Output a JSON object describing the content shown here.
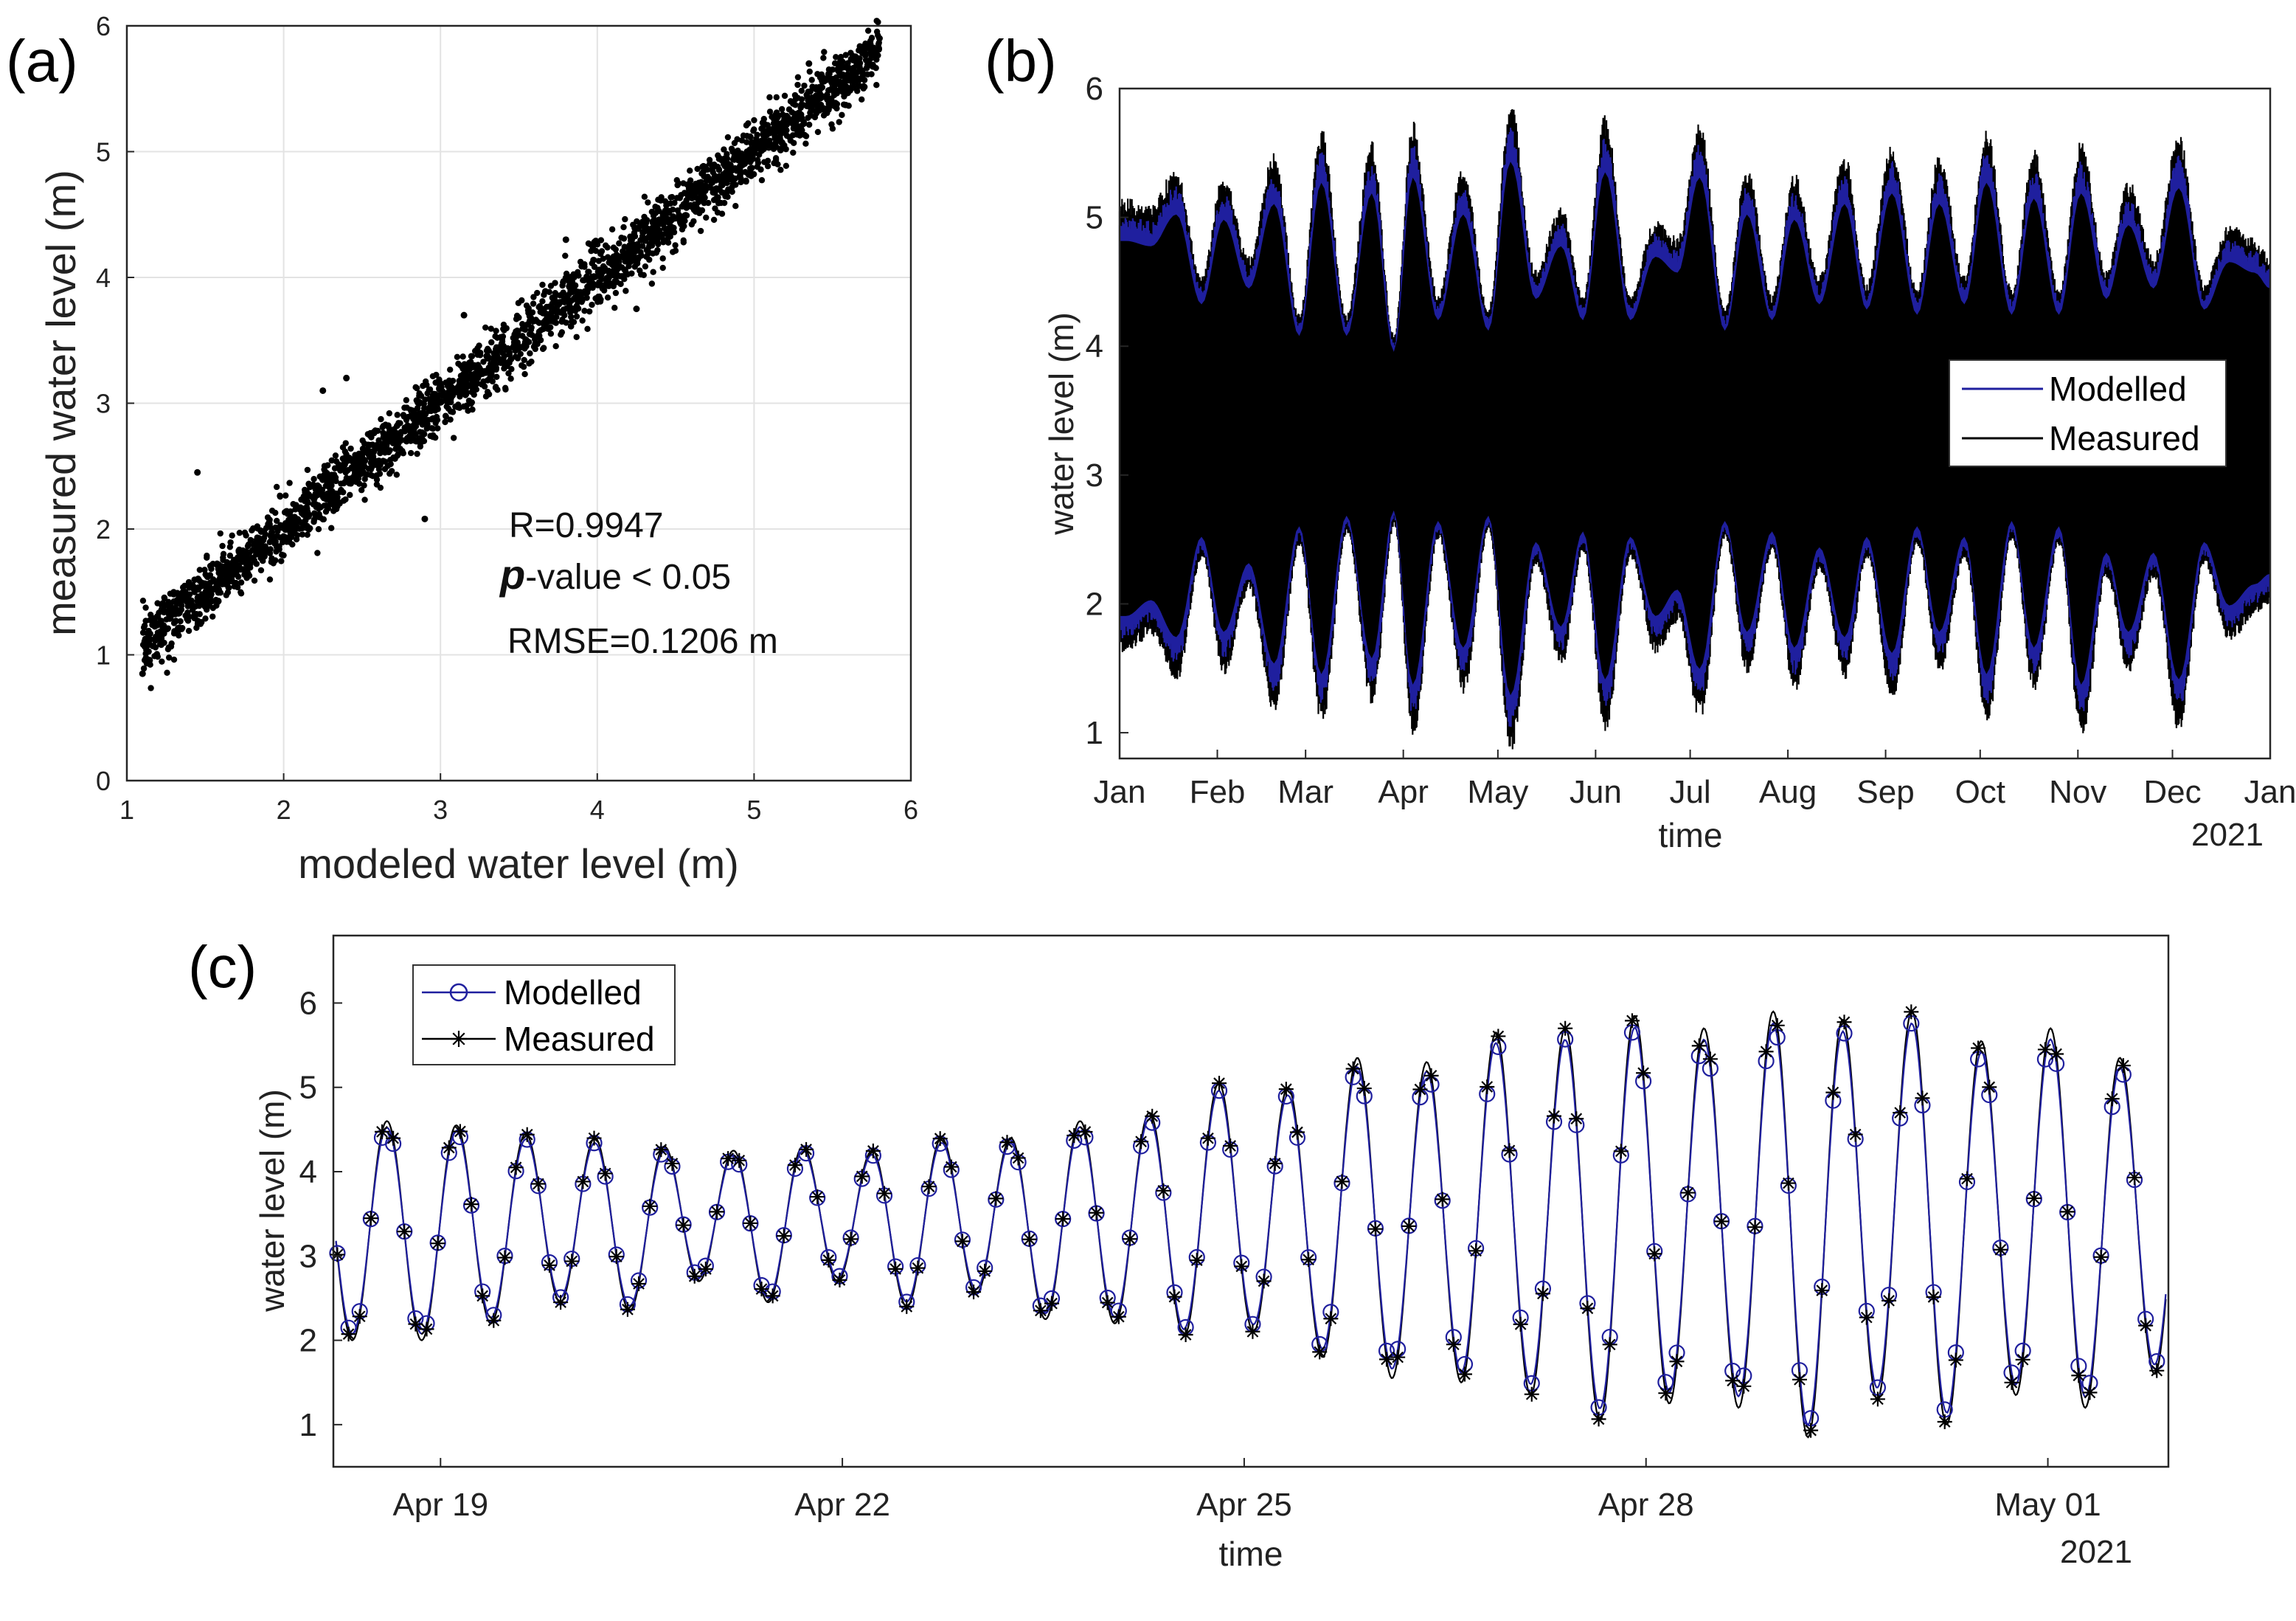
{
  "colors": {
    "modelled": "#1f1f9e",
    "measured": "#000000",
    "grid": "#e3e3e3",
    "axis": "#262626"
  },
  "chart_data": [
    {
      "panel": "(a)",
      "type": "scatter",
      "title": "",
      "xlabel": "modeled water level (m)",
      "ylabel": "measured water level (m)",
      "xlim": [
        1,
        6
      ],
      "ylim": [
        0,
        6
      ],
      "xticks": [
        1,
        2,
        3,
        4,
        5,
        6
      ],
      "yticks": [
        0,
        1,
        2,
        3,
        4,
        5,
        6
      ],
      "grid": true,
      "fit": {
        "slope": 1.0,
        "intercept": 0.0,
        "scatter_sd_m": 0.12,
        "x_range": [
          1.1,
          5.8
        ]
      },
      "points": [
        [
          1.1,
          0.85
        ],
        [
          1.45,
          2.45
        ],
        [
          2.25,
          3.1
        ],
        [
          2.4,
          3.2
        ],
        [
          2.9,
          2.08
        ],
        [
          3.15,
          3.7
        ],
        [
          3.8,
          4.3
        ],
        [
          4.25,
          3.75
        ],
        [
          5.35,
          5.7
        ],
        [
          5.8,
          5.9
        ]
      ],
      "annotations": [
        "R=0.9947",
        "-value < 0.05",
        "RMSE=0.1206 m"
      ],
      "annotation_italic_prefix": "p"
    },
    {
      "panel": "(b)",
      "type": "line",
      "xlabel": "time",
      "ylabel": "water level (m)",
      "ylim": [
        0.8,
        6
      ],
      "yticks": [
        1,
        2,
        3,
        4,
        5,
        6
      ],
      "x_units": "day of year",
      "xlim": [
        0,
        365
      ],
      "xticks": [
        0,
        31,
        59,
        90,
        120,
        151,
        181,
        212,
        243,
        273,
        304,
        334,
        365
      ],
      "xticklabels": [
        "Jan",
        "Feb",
        "Mar",
        "Apr",
        "May",
        "Jun",
        "Jul",
        "Aug",
        "Sep",
        "Oct",
        "Nov",
        "Dec",
        "Jan"
      ],
      "year_label": "2021",
      "mean_level": 3.3,
      "envelope_peaks": [
        {
          "day": 2,
          "high": 5.15,
          "low": 1.6
        },
        {
          "day": 10,
          "high": 5.1,
          "low": 1.75
        },
        {
          "day": 18,
          "high": 5.4,
          "low": 1.4
        },
        {
          "day": 26,
          "high": 4.55,
          "low": 2.35
        },
        {
          "day": 33,
          "high": 5.35,
          "low": 1.45
        },
        {
          "day": 41,
          "high": 4.7,
          "low": 2.1
        },
        {
          "day": 49,
          "high": 5.5,
          "low": 1.15
        },
        {
          "day": 57,
          "high": 4.25,
          "low": 2.45
        },
        {
          "day": 64,
          "high": 5.7,
          "low": 1.05
        },
        {
          "day": 72,
          "high": 4.25,
          "low": 2.55
        },
        {
          "day": 80,
          "high": 5.6,
          "low": 1.2
        },
        {
          "day": 87,
          "high": 4.1,
          "low": 2.6
        },
        {
          "day": 93,
          "high": 5.75,
          "low": 0.95
        },
        {
          "day": 101,
          "high": 4.4,
          "low": 2.5
        },
        {
          "day": 109,
          "high": 5.4,
          "low": 1.3
        },
        {
          "day": 117,
          "high": 4.3,
          "low": 2.55
        },
        {
          "day": 124,
          "high": 5.9,
          "low": 0.85
        },
        {
          "day": 132,
          "high": 4.6,
          "low": 2.3
        },
        {
          "day": 140,
          "high": 5.1,
          "low": 1.5
        },
        {
          "day": 147,
          "high": 4.4,
          "low": 2.4
        },
        {
          "day": 154,
          "high": 5.8,
          "low": 1.0
        },
        {
          "day": 162,
          "high": 4.4,
          "low": 2.35
        },
        {
          "day": 170,
          "high": 5.0,
          "low": 1.6
        },
        {
          "day": 177,
          "high": 4.85,
          "low": 1.85
        },
        {
          "day": 184,
          "high": 5.75,
          "low": 1.1
        },
        {
          "day": 192,
          "high": 4.3,
          "low": 2.5
        },
        {
          "day": 199,
          "high": 5.4,
          "low": 1.45
        },
        {
          "day": 207,
          "high": 4.4,
          "low": 2.4
        },
        {
          "day": 214,
          "high": 5.35,
          "low": 1.3
        },
        {
          "day": 222,
          "high": 4.55,
          "low": 2.25
        },
        {
          "day": 230,
          "high": 5.5,
          "low": 1.4
        },
        {
          "day": 237,
          "high": 4.5,
          "low": 2.35
        },
        {
          "day": 245,
          "high": 5.6,
          "low": 1.25
        },
        {
          "day": 253,
          "high": 4.45,
          "low": 2.45
        },
        {
          "day": 260,
          "high": 5.5,
          "low": 1.45
        },
        {
          "day": 268,
          "high": 4.55,
          "low": 2.35
        },
        {
          "day": 275,
          "high": 5.7,
          "low": 1.05
        },
        {
          "day": 283,
          "high": 4.45,
          "low": 2.5
        },
        {
          "day": 290,
          "high": 5.55,
          "low": 1.3
        },
        {
          "day": 298,
          "high": 4.45,
          "low": 2.45
        },
        {
          "day": 305,
          "high": 5.6,
          "low": 0.95
        },
        {
          "day": 313,
          "high": 4.6,
          "low": 2.2
        },
        {
          "day": 320,
          "high": 5.3,
          "low": 1.45
        },
        {
          "day": 328,
          "high": 4.7,
          "low": 2.2
        },
        {
          "day": 336,
          "high": 5.65,
          "low": 1.0
        },
        {
          "day": 344,
          "high": 4.5,
          "low": 2.3
        },
        {
          "day": 352,
          "high": 4.95,
          "low": 1.7
        },
        {
          "day": 360,
          "high": 4.85,
          "low": 1.9
        },
        {
          "day": 365,
          "high": 4.7,
          "low": 2.0
        }
      ],
      "modelled_damping": 0.93,
      "legend": {
        "position": "right",
        "entries": [
          "Modelled",
          "Measured"
        ]
      },
      "series": [
        {
          "name": "Modelled",
          "color": "#1f1f9e"
        },
        {
          "name": "Measured",
          "color": "#000000"
        }
      ]
    },
    {
      "panel": "(c)",
      "type": "line",
      "xlabel": "time",
      "ylabel": "water level (m)",
      "ylim": [
        0.5,
        6.8
      ],
      "yticks": [
        1,
        2,
        3,
        4,
        5,
        6
      ],
      "x_units": "days since Apr 18 00:00",
      "xlim": [
        0.2,
        13.9
      ],
      "xticks": [
        1,
        4,
        7,
        10,
        13
      ],
      "xticklabels": [
        "Apr 19",
        "Apr 22",
        "Apr 25",
        "Apr 28",
        "May 01"
      ],
      "year_label": "2021",
      "tidal_period_hours": 12.42,
      "first_high_day": 0.6,
      "sample_interval_hours": 2,
      "highs_measured": [
        4.6,
        4.55,
        4.45,
        4.4,
        4.3,
        4.25,
        4.3,
        4.25,
        4.4,
        4.4,
        4.6,
        4.7,
        5.05,
        5.0,
        5.35,
        5.3,
        5.65,
        5.7,
        5.85,
        5.7,
        5.9,
        5.8,
        5.9,
        5.55,
        5.7,
        5.35
      ],
      "lows_measured": [
        2.0,
        2.2,
        2.45,
        2.35,
        2.7,
        2.45,
        2.7,
        2.4,
        2.55,
        2.25,
        2.2,
        2.05,
        2.1,
        1.8,
        1.55,
        1.5,
        1.35,
        1.05,
        1.25,
        1.2,
        0.85,
        1.3,
        1.0,
        1.35,
        1.2,
        1.6
      ],
      "modelled_damping": 0.94,
      "legend": {
        "position": "top-left",
        "entries": [
          "Modelled",
          "Measured"
        ]
      },
      "series": [
        {
          "name": "Modelled",
          "color": "#1f1f9e",
          "marker": "circle"
        },
        {
          "name": "Measured",
          "color": "#000000",
          "marker": "asterisk"
        }
      ]
    }
  ]
}
